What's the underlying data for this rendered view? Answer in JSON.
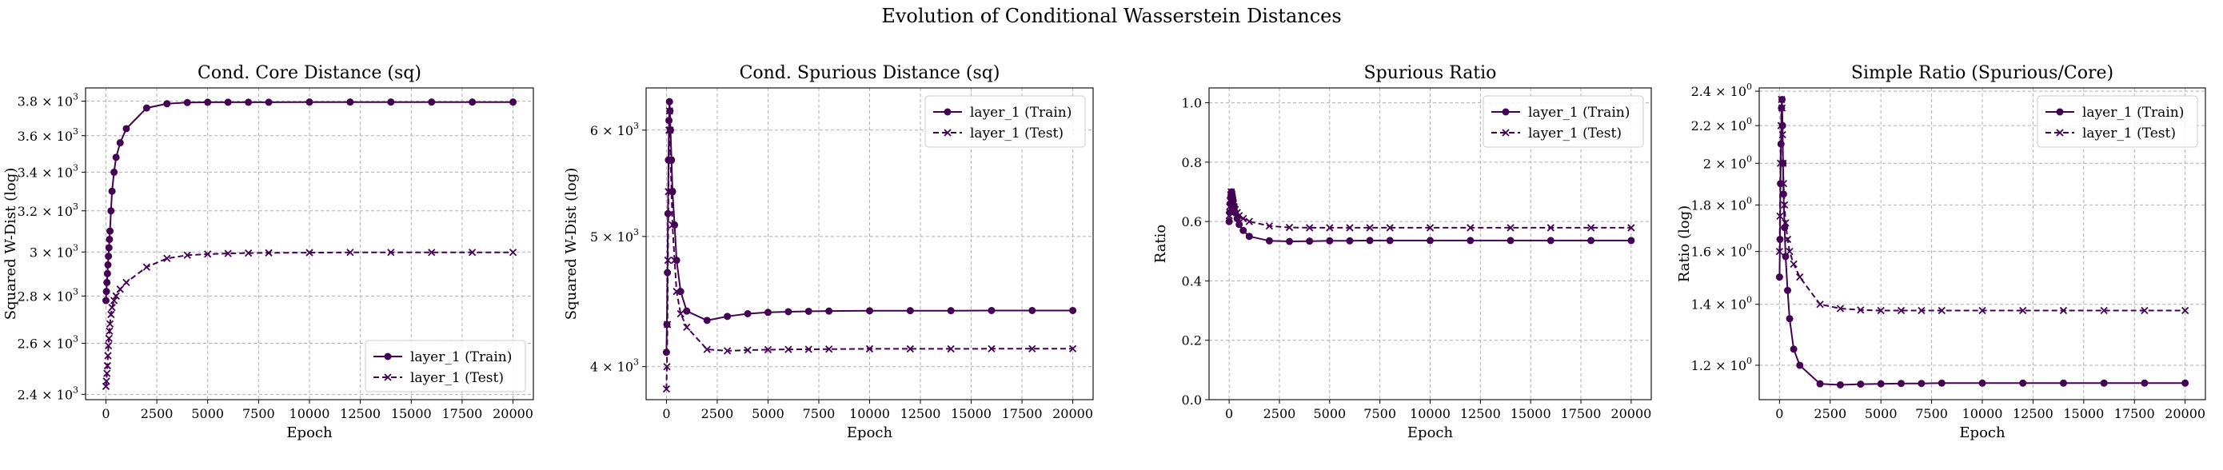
{
  "suptitle": "Evolution of Conditional Wasserstein Distances",
  "colors": {
    "series": "#440154",
    "grid": "#b0b0b0"
  },
  "chart_data": [
    {
      "type": "line",
      "title": "Cond. Core Distance (sq)",
      "xlabel": "Epoch",
      "ylabel": "Squared W-Dist (log)",
      "yscale": "log",
      "xlim": [
        -1000,
        21000
      ],
      "ylim": [
        2380,
        3880
      ],
      "xticks": [
        0,
        2500,
        5000,
        7500,
        10000,
        12500,
        15000,
        17500,
        20000
      ],
      "xtick_labels": [
        "0",
        "2500",
        "5000",
        "7500",
        "10000",
        "12500",
        "15000",
        "17500",
        "20000"
      ],
      "yticks": [
        2400,
        2600,
        2800,
        3000,
        3200,
        3400,
        3600,
        3800
      ],
      "ytick_labels": [
        [
          "2.4 × 10",
          "3"
        ],
        [
          "2.6 × 10",
          "3"
        ],
        [
          "2.8 × 10",
          "3"
        ],
        [
          "3 × 10",
          "3"
        ],
        [
          "3.2 × 10",
          "3"
        ],
        [
          "3.4 × 10",
          "3"
        ],
        [
          "3.6 × 10",
          "3"
        ],
        [
          "3.8 × 10",
          "3"
        ]
      ],
      "legend": "lower-right",
      "grid": true,
      "series": [
        {
          "name": "layer_1 (Train)",
          "style": "solid",
          "marker": "circle",
          "x": [
            0,
            25,
            50,
            75,
            100,
            125,
            150,
            175,
            200,
            250,
            300,
            400,
            500,
            700,
            1000,
            2000,
            3000,
            4000,
            5000,
            6000,
            7000,
            8000,
            10000,
            12000,
            14000,
            16000,
            18000,
            20000
          ],
          "y": [
            2780,
            2820,
            2860,
            2900,
            2940,
            2980,
            3020,
            3060,
            3100,
            3200,
            3300,
            3400,
            3480,
            3560,
            3640,
            3760,
            3785,
            3792,
            3794,
            3794,
            3794,
            3794,
            3795,
            3795,
            3795,
            3795,
            3795,
            3795
          ]
        },
        {
          "name": "layer_1 (Test)",
          "style": "dashed",
          "marker": "x",
          "x": [
            0,
            25,
            50,
            75,
            100,
            125,
            150,
            175,
            200,
            250,
            300,
            400,
            500,
            700,
            1000,
            2000,
            3000,
            4000,
            5000,
            6000,
            7000,
            8000,
            10000,
            12000,
            14000,
            16000,
            18000,
            20000
          ],
          "y": [
            2430,
            2450,
            2480,
            2510,
            2550,
            2590,
            2620,
            2650,
            2680,
            2720,
            2750,
            2780,
            2800,
            2830,
            2860,
            2930,
            2970,
            2985,
            2990,
            2993,
            2995,
            2996,
            2997,
            2998,
            2998,
            2998,
            2998,
            2998
          ]
        }
      ]
    },
    {
      "type": "line",
      "title": "Cond. Spurious Distance (sq)",
      "xlabel": "Epoch",
      "ylabel": "Squared W-Dist (log)",
      "yscale": "log",
      "xlim": [
        -1000,
        21000
      ],
      "ylim": [
        3780,
        6450
      ],
      "xticks": [
        0,
        2500,
        5000,
        7500,
        10000,
        12500,
        15000,
        17500,
        20000
      ],
      "xtick_labels": [
        "0",
        "2500",
        "5000",
        "7500",
        "10000",
        "12500",
        "15000",
        "17500",
        "20000"
      ],
      "yticks": [
        4000,
        5000,
        6000
      ],
      "ytick_labels": [
        [
          "4 × 10",
          "3"
        ],
        [
          "5 × 10",
          "3"
        ],
        [
          "6 × 10",
          "3"
        ]
      ],
      "legend": "upper-right",
      "grid": true,
      "series": [
        {
          "name": "layer_1 (Train)",
          "style": "solid",
          "marker": "circle",
          "x": [
            0,
            25,
            50,
            75,
            100,
            125,
            150,
            175,
            200,
            250,
            300,
            400,
            500,
            700,
            1000,
            2000,
            3000,
            4000,
            5000,
            6000,
            7000,
            8000,
            10000,
            12000,
            14000,
            16000,
            18000,
            20000
          ],
          "y": [
            4100,
            4300,
            4700,
            5200,
            5700,
            6100,
            6300,
            6200,
            6000,
            5700,
            5400,
            5100,
            4800,
            4550,
            4400,
            4330,
            4360,
            4380,
            4390,
            4395,
            4398,
            4400,
            4402,
            4403,
            4403,
            4404,
            4404,
            4404
          ]
        },
        {
          "name": "layer_1 (Test)",
          "style": "dashed",
          "marker": "x",
          "x": [
            0,
            25,
            50,
            75,
            100,
            125,
            150,
            175,
            200,
            250,
            300,
            400,
            500,
            700,
            1000,
            2000,
            3000,
            4000,
            5000,
            6000,
            7000,
            8000,
            10000,
            12000,
            14000,
            16000,
            18000,
            20000
          ],
          "y": [
            3850,
            4000,
            4300,
            4800,
            5400,
            6000,
            6200,
            6000,
            5700,
            5400,
            5100,
            4800,
            4550,
            4380,
            4280,
            4120,
            4110,
            4115,
            4118,
            4120,
            4121,
            4122,
            4124,
            4124,
            4124,
            4125,
            4125,
            4125
          ]
        }
      ]
    },
    {
      "type": "line",
      "title": "Spurious Ratio",
      "xlabel": "Epoch",
      "ylabel": "Ratio",
      "yscale": "linear",
      "xlim": [
        -1000,
        21000
      ],
      "ylim": [
        0,
        1.05
      ],
      "xticks": [
        0,
        2500,
        5000,
        7500,
        10000,
        12500,
        15000,
        17500,
        20000
      ],
      "xtick_labels": [
        "0",
        "2500",
        "5000",
        "7500",
        "10000",
        "12500",
        "15000",
        "17500",
        "20000"
      ],
      "yticks": [
        0,
        0.2,
        0.4,
        0.6,
        0.8,
        1.0
      ],
      "ytick_labels": [
        [
          "0.0",
          ""
        ],
        [
          "0.2",
          ""
        ],
        [
          "0.4",
          ""
        ],
        [
          "0.6",
          ""
        ],
        [
          "0.8",
          ""
        ],
        [
          "1.0",
          ""
        ]
      ],
      "legend": "upper-right",
      "grid": true,
      "series": [
        {
          "name": "layer_1 (Train)",
          "style": "solid",
          "marker": "circle",
          "x": [
            0,
            25,
            50,
            75,
            100,
            125,
            150,
            175,
            200,
            250,
            300,
            400,
            500,
            700,
            1000,
            2000,
            3000,
            4000,
            5000,
            6000,
            7000,
            8000,
            10000,
            12000,
            14000,
            16000,
            18000,
            20000
          ],
          "y": [
            0.6,
            0.63,
            0.66,
            0.68,
            0.69,
            0.7,
            0.69,
            0.68,
            0.67,
            0.65,
            0.63,
            0.61,
            0.59,
            0.57,
            0.55,
            0.535,
            0.533,
            0.534,
            0.535,
            0.535,
            0.536,
            0.536,
            0.536,
            0.536,
            0.536,
            0.536,
            0.536,
            0.536
          ]
        },
        {
          "name": "layer_1 (Test)",
          "style": "dashed",
          "marker": "x",
          "x": [
            0,
            25,
            50,
            75,
            100,
            125,
            150,
            175,
            200,
            250,
            300,
            400,
            500,
            700,
            1000,
            2000,
            3000,
            4000,
            5000,
            6000,
            7000,
            8000,
            10000,
            12000,
            14000,
            16000,
            18000,
            20000
          ],
          "y": [
            0.62,
            0.65,
            0.67,
            0.69,
            0.7,
            0.69,
            0.68,
            0.67,
            0.66,
            0.65,
            0.64,
            0.63,
            0.62,
            0.61,
            0.6,
            0.585,
            0.58,
            0.579,
            0.579,
            0.579,
            0.579,
            0.579,
            0.579,
            0.579,
            0.579,
            0.579,
            0.579,
            0.579
          ]
        }
      ]
    },
    {
      "type": "line",
      "title": "Simple Ratio (Spurious/Core)",
      "xlabel": "Epoch",
      "ylabel": "Ratio (log)",
      "yscale": "log",
      "xlim": [
        -1000,
        21000
      ],
      "ylim": [
        1.1,
        2.42
      ],
      "xticks": [
        0,
        2500,
        5000,
        7500,
        10000,
        12500,
        15000,
        17500,
        20000
      ],
      "xtick_labels": [
        "0",
        "2500",
        "5000",
        "7500",
        "10000",
        "12500",
        "15000",
        "17500",
        "20000"
      ],
      "yticks": [
        1.2,
        1.4,
        1.6,
        1.8,
        2.0,
        2.2,
        2.4
      ],
      "ytick_labels": [
        [
          "1.2 × 10",
          "0"
        ],
        [
          "1.4 × 10",
          "0"
        ],
        [
          "1.6 × 10",
          "0"
        ],
        [
          "1.8 × 10",
          "0"
        ],
        [
          "2 × 10",
          "0"
        ],
        [
          "2.2 × 10",
          "0"
        ],
        [
          "2.4 × 10",
          "0"
        ]
      ],
      "legend": "upper-right",
      "grid": true,
      "series": [
        {
          "name": "layer_1 (Train)",
          "style": "solid",
          "marker": "circle",
          "x": [
            0,
            25,
            50,
            75,
            100,
            125,
            150,
            175,
            200,
            250,
            300,
            400,
            500,
            700,
            1000,
            2000,
            3000,
            4000,
            5000,
            6000,
            7000,
            8000,
            10000,
            12000,
            14000,
            16000,
            18000,
            20000
          ],
          "y": [
            1.5,
            1.65,
            1.9,
            2.1,
            2.3,
            2.35,
            2.2,
            2.0,
            1.85,
            1.7,
            1.58,
            1.45,
            1.35,
            1.25,
            1.2,
            1.145,
            1.142,
            1.144,
            1.145,
            1.146,
            1.146,
            1.147,
            1.147,
            1.147,
            1.147,
            1.147,
            1.147,
            1.147
          ]
        },
        {
          "name": "layer_1 (Test)",
          "style": "dashed",
          "marker": "x",
          "x": [
            0,
            25,
            50,
            75,
            100,
            125,
            150,
            175,
            200,
            250,
            300,
            400,
            500,
            700,
            1000,
            2000,
            3000,
            4000,
            5000,
            6000,
            7000,
            8000,
            10000,
            12000,
            14000,
            16000,
            18000,
            20000
          ],
          "y": [
            1.6,
            1.75,
            2.0,
            2.2,
            2.35,
            2.3,
            2.15,
            2.0,
            1.9,
            1.8,
            1.72,
            1.65,
            1.6,
            1.55,
            1.5,
            1.4,
            1.385,
            1.38,
            1.378,
            1.378,
            1.378,
            1.378,
            1.378,
            1.378,
            1.378,
            1.378,
            1.378,
            1.378
          ]
        }
      ]
    }
  ]
}
